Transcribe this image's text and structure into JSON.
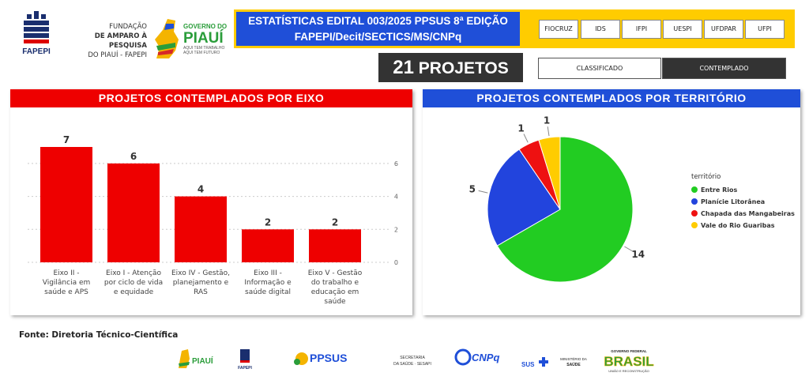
{
  "header": {
    "fapepi_label": "FAPEPI",
    "fapepi_lines": [
      "FUNDAÇÃO",
      "DE AMPARO À PESQUISA",
      "DO PIAUÍ - FAPEPI"
    ],
    "gov_label_top": "GOVERNO DO",
    "gov_label_main": "PIAUÍ",
    "gov_slogan_1": "AQUI TEM TRABALHO",
    "gov_slogan_2": "AQUI TEM FUTURO",
    "title_line1": "ESTATÍSTICAS EDITAL 003/2025 PPSUS 8ª EDIÇÃO",
    "title_line2": "FAPEPI/Decit/SECTICS/MS/CNPq",
    "institutions": [
      "FIOCRUZ",
      "IDS",
      "IFPI",
      "UESPI",
      "UFDPAR",
      "UFPI"
    ],
    "projects_count": "21",
    "projects_label": "PROJETOS",
    "segments": {
      "classified": "CLASSIFICADO",
      "contemplated": "CONTEMPLADO"
    }
  },
  "colors": {
    "red": "#ee0000",
    "blue": "#1f4fd8",
    "yellow": "#ffcc00",
    "dark": "#333333",
    "pie_green": "#22cc22",
    "pie_blue": "#2244dd",
    "pie_red": "#ee1111",
    "pie_yellow": "#ffcc00"
  },
  "chart_data": [
    {
      "type": "bar",
      "title": "PROJETOS CONTEMPLADOS POR EIXO",
      "categories": [
        [
          "Eixo II -",
          "Vigilância em",
          "saúde e APS"
        ],
        [
          "Eixo I - Atenção",
          "por ciclo de vida",
          "e equidade"
        ],
        [
          "Eixo IV - Gestão,",
          "planejamento e",
          "RAS"
        ],
        [
          "Eixo III -",
          "Informação e",
          "saúde digital"
        ],
        [
          "Eixo V - Gestão",
          "do trabalho e",
          "educação em",
          "saúde"
        ]
      ],
      "values": [
        7,
        6,
        4,
        2,
        2
      ],
      "data_labels": [
        "7",
        "6",
        "4",
        "2",
        "2"
      ],
      "ylim": [
        0,
        7
      ],
      "yticks": [
        "0",
        "2",
        "4",
        "6"
      ],
      "ytick_values": [
        0,
        2,
        4,
        6
      ],
      "grid": true,
      "axis_side": "right"
    },
    {
      "type": "pie",
      "title": "PROJETOS CONTEMPLADOS POR TERRITÓRIO",
      "legend_title": "território",
      "legend_position": "right",
      "slices": [
        {
          "label": "Entre Rios",
          "value": 14,
          "value_label": "14",
          "color": "#22cc22"
        },
        {
          "label": "Planície Litorânea",
          "value": 5,
          "value_label": "5",
          "color": "#2244dd"
        },
        {
          "label": "Chapada das Mangabeiras",
          "value": 1,
          "value_label": "1",
          "color": "#ee1111"
        },
        {
          "label": "Vale do Rio Guaribas",
          "value": 1,
          "value_label": "1",
          "color": "#ffcc00"
        }
      ]
    }
  ],
  "footer": {
    "source": "Fonte: Diretoria Técnico-Científica",
    "logos": {
      "gov_piaui": "PIAUÍ",
      "fapepi": "FAPEPI",
      "ppsus": "PPSUS",
      "secretaria_1": "SECRETARIA",
      "secretaria_2": "DA SAÚDE · SESAPI",
      "cnpq": "CNPq",
      "sus": "SUS",
      "ministerio_1": "MINISTÉRIO DA",
      "ministerio_2": "SAÚDE",
      "gov_federal": "GOVERNO FEDERAL",
      "brasil": "BRASIL",
      "brasil_slogan": "UNIÃO E RECONSTRUÇÃO"
    }
  }
}
